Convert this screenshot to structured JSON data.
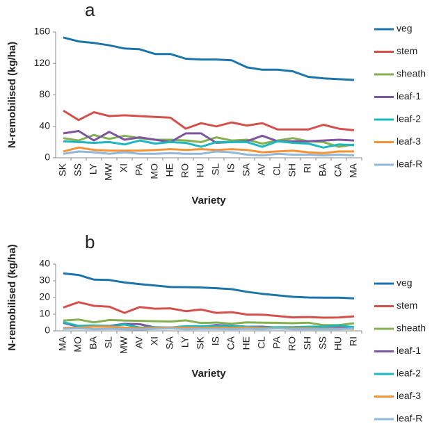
{
  "chart_data": [
    {
      "type": "line",
      "panel_label": "a",
      "x_label": "Variety",
      "y_label": "N-remobilised (kg/ha)",
      "categories": [
        "SK",
        "SS",
        "LY",
        "MW",
        "XI",
        "PA",
        "MO",
        "HE",
        "RO",
        "HU",
        "SL",
        "IS",
        "SA",
        "AV",
        "CL",
        "SH",
        "RI",
        "BA",
        "CA",
        "MA"
      ],
      "ylim": [
        0,
        160
      ],
      "yticks": [
        0,
        40,
        80,
        120,
        160
      ],
      "series": [
        {
          "name": "veg",
          "color": "#1b75a8",
          "values": [
            153,
            148,
            146,
            143,
            139,
            138,
            132,
            132,
            126,
            125,
            125,
            124,
            115,
            112,
            112,
            110,
            103,
            101,
            100,
            99
          ]
        },
        {
          "name": "stem",
          "color": "#d6504b",
          "values": [
            60,
            48,
            58,
            53,
            54,
            53,
            52,
            51,
            37,
            44,
            40,
            45,
            41,
            44,
            36,
            36,
            36,
            42,
            37,
            35
          ]
        },
        {
          "name": "sheath",
          "color": "#84b050",
          "values": [
            25,
            22,
            29,
            24,
            28,
            25,
            23,
            23,
            22,
            20,
            26,
            22,
            23,
            18,
            22,
            25,
            21,
            20,
            14,
            17
          ]
        },
        {
          "name": "leaf-1",
          "color": "#7d56a0",
          "values": [
            31,
            34,
            22,
            33,
            23,
            26,
            23,
            20,
            31,
            31,
            19,
            20,
            21,
            28,
            21,
            21,
            21,
            22,
            23,
            22
          ]
        },
        {
          "name": "leaf-2",
          "color": "#1cb8c0",
          "values": [
            21,
            20,
            19,
            20,
            17,
            22,
            18,
            20,
            19,
            14,
            20,
            20,
            20,
            14,
            21,
            19,
            18,
            13,
            17,
            16
          ]
        },
        {
          "name": "leaf-3",
          "color": "#f39236",
          "values": [
            8,
            13,
            10,
            9,
            9,
            9,
            10,
            11,
            10,
            11,
            10,
            11,
            10,
            7,
            8,
            9,
            7,
            6,
            8,
            8
          ]
        },
        {
          "name": "leaf-R",
          "color": "#93b8d6",
          "values": [
            5,
            8,
            7,
            5,
            7,
            5,
            5,
            6,
            5,
            5,
            8,
            7,
            4,
            3,
            5,
            4,
            4,
            3,
            4,
            3
          ]
        }
      ]
    },
    {
      "type": "line",
      "panel_label": "b",
      "x_label": "Variety",
      "y_label": "N-remobilised (kg/ha)",
      "categories": [
        "MA",
        "MO",
        "BA",
        "SL",
        "MW",
        "AV",
        "XI",
        "SA",
        "LY",
        "SK",
        "IS",
        "CA",
        "HE",
        "CL",
        "PA",
        "RO",
        "SH",
        "SS",
        "HU",
        "RI"
      ],
      "ylim": [
        0,
        40
      ],
      "yticks": [
        0,
        10,
        20,
        30,
        40
      ],
      "series": [
        {
          "name": "veg",
          "color": "#1b75a8",
          "values": [
            34.5,
            33.5,
            30.7,
            30.5,
            29,
            28,
            27.2,
            26.3,
            26.2,
            26,
            25.6,
            25,
            23.4,
            22.2,
            21.3,
            20.4,
            20,
            19.9,
            19.9,
            19.5
          ]
        },
        {
          "name": "stem",
          "color": "#d6504b",
          "values": [
            14,
            17.2,
            15,
            14.5,
            10.8,
            14.3,
            13.3,
            13.5,
            11.8,
            12.8,
            10.8,
            11.2,
            9.8,
            9.7,
            8.9,
            8.1,
            8.3,
            7.9,
            8,
            8.7
          ]
        },
        {
          "name": "sheath",
          "color": "#84b050",
          "values": [
            6.2,
            6.8,
            5.1,
            6.5,
            6.2,
            6,
            5.8,
            5.6,
            6.3,
            4.7,
            5,
            4.3,
            5.1,
            4.9,
            4.8,
            4.6,
            4.9,
            3.4,
            3.4,
            4.6
          ]
        },
        {
          "name": "leaf-1",
          "color": "#7d56a0",
          "values": [
            4.8,
            2.5,
            3,
            3,
            4.2,
            4,
            2,
            2,
            2,
            2.5,
            3.5,
            3,
            2.5,
            2.5,
            2,
            2,
            2,
            2.5,
            2.5,
            2
          ]
        },
        {
          "name": "leaf-2",
          "color": "#1cb8c0",
          "values": [
            5.2,
            3,
            3.3,
            2.8,
            3.8,
            2,
            2.2,
            2,
            2.8,
            2.8,
            2.8,
            2.8,
            2.5,
            2,
            2.2,
            2.2,
            2.5,
            2.6,
            3.2,
            2.2
          ]
        },
        {
          "name": "leaf-3",
          "color": "#f39236",
          "values": [
            1.8,
            2,
            2.5,
            2.5,
            2,
            1.5,
            1.8,
            2,
            2,
            1.8,
            2,
            1.8,
            2,
            1.5,
            1.5,
            1.5,
            1.5,
            1.2,
            1.2,
            1.2
          ]
        },
        {
          "name": "leaf-R",
          "color": "#93b8d6",
          "values": [
            1.2,
            1.5,
            1,
            1.2,
            1,
            0.8,
            1.2,
            1.5,
            1,
            1.2,
            1.2,
            1,
            1.2,
            1,
            1.5,
            1,
            1,
            1,
            1,
            1.5
          ]
        }
      ]
    }
  ]
}
